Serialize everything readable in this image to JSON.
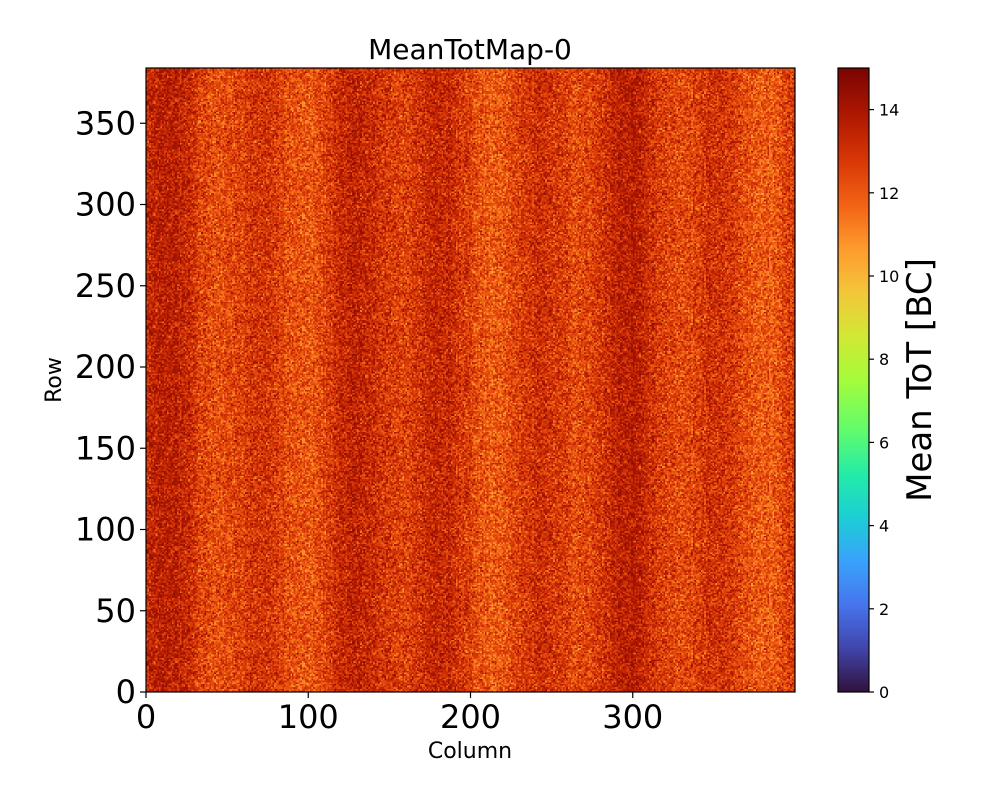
{
  "chart_data": {
    "type": "heatmap",
    "title": "MeanTotMap-0",
    "xlabel": "Column",
    "ylabel": "Row",
    "xlim": [
      0,
      400
    ],
    "ylim": [
      0,
      384
    ],
    "x_ticks": [
      {
        "value": 0,
        "label": "0"
      },
      {
        "value": 100,
        "label": "100"
      },
      {
        "value": 200,
        "label": "200"
      },
      {
        "value": 300,
        "label": "300"
      }
    ],
    "y_ticks": [
      {
        "value": 0,
        "label": "0"
      },
      {
        "value": 50,
        "label": "50"
      },
      {
        "value": 100,
        "label": "100"
      },
      {
        "value": 150,
        "label": "150"
      },
      {
        "value": 200,
        "label": "200"
      },
      {
        "value": 250,
        "label": "250"
      },
      {
        "value": 300,
        "label": "300"
      },
      {
        "value": 350,
        "label": "350"
      }
    ],
    "colorbar": {
      "label": "Mean ToT [BC]",
      "range": [
        0,
        15
      ],
      "colormap": "turbo",
      "ticks": [
        {
          "value": 0,
          "label": "0"
        },
        {
          "value": 2,
          "label": "2"
        },
        {
          "value": 4,
          "label": "4"
        },
        {
          "value": 6,
          "label": "6"
        },
        {
          "value": 8,
          "label": "8"
        },
        {
          "value": 10,
          "label": "10"
        },
        {
          "value": 12,
          "label": "12"
        },
        {
          "value": 14,
          "label": "14"
        }
      ]
    },
    "value_summary": {
      "typical_min": 10.5,
      "typical_max": 14.5,
      "typical_mean": 12.8
    },
    "colormap_stops": [
      {
        "value": 0.0,
        "color": "#30123b"
      },
      {
        "value": 0.07,
        "color": "#4145ab"
      },
      {
        "value": 0.14,
        "color": "#4675ed"
      },
      {
        "value": 0.21,
        "color": "#39a2fc"
      },
      {
        "value": 0.28,
        "color": "#1bcfd4"
      },
      {
        "value": 0.35,
        "color": "#24eca6"
      },
      {
        "value": 0.42,
        "color": "#61fc6c"
      },
      {
        "value": 0.5,
        "color": "#a4fc3b"
      },
      {
        "value": 0.57,
        "color": "#d1e834"
      },
      {
        "value": 0.64,
        "color": "#f3c63a"
      },
      {
        "value": 0.71,
        "color": "#fe9b2d"
      },
      {
        "value": 0.78,
        "color": "#f36315"
      },
      {
        "value": 0.85,
        "color": "#d93806"
      },
      {
        "value": 0.92,
        "color": "#b11901"
      },
      {
        "value": 1.0,
        "color": "#7a0402"
      }
    ]
  }
}
